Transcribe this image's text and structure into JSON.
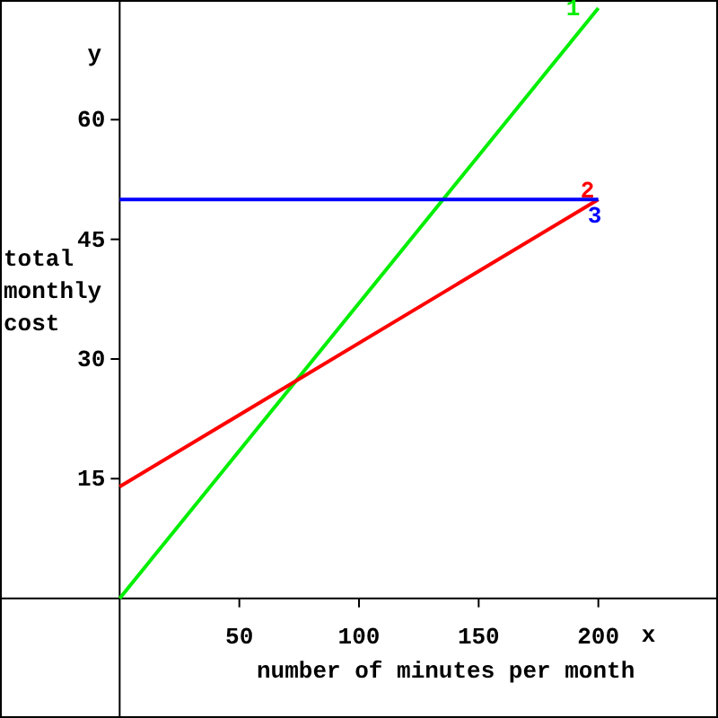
{
  "chart_data": {
    "type": "line",
    "xlabel": "number of minutes per month",
    "ylabel": "total monthly cost",
    "annotations": [
      "x",
      "y"
    ],
    "xlim": [
      -50,
      250
    ],
    "ylim": [
      -15,
      75
    ],
    "xticks": [
      50,
      100,
      150,
      200
    ],
    "yticks": [
      15,
      30,
      45,
      60
    ],
    "grid": false,
    "marker": "none",
    "line_style": "solid",
    "x": [
      0,
      200
    ],
    "series": [
      {
        "name": "1",
        "color": "#00ee00",
        "values": [
          0,
          74
        ]
      },
      {
        "name": "2",
        "color": "#ff0000",
        "values": [
          14,
          50
        ]
      },
      {
        "name": "3",
        "color": "#0000ff",
        "values": [
          50,
          50
        ]
      }
    ]
  }
}
